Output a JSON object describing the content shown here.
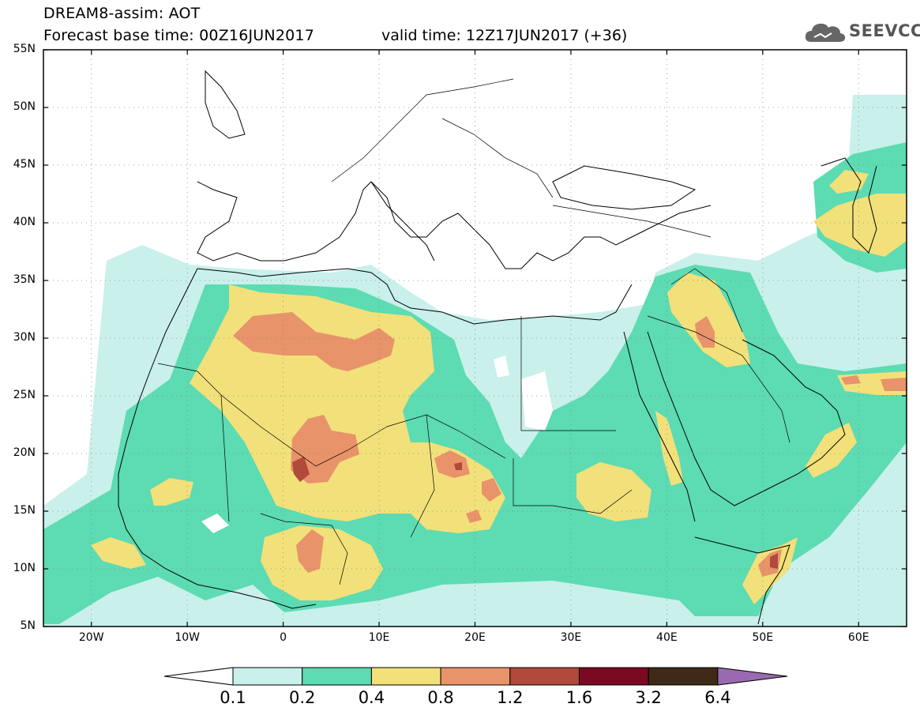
{
  "header": {
    "title_line1": "DREAM8-assim: AOT",
    "title_line2": "Forecast base time: 00Z16JUN2017",
    "valid_time": "valid time: 12Z17JUN2017 (+36)"
  },
  "logo": {
    "text": "SEEVCCC",
    "icon": "cloud-icon"
  },
  "map": {
    "projection": "lat-lon",
    "lon_range": [
      -25,
      65
    ],
    "lat_range": [
      5,
      55
    ],
    "lat_ticks": [
      "55N",
      "50N",
      "45N",
      "40N",
      "35N",
      "30N",
      "25N",
      "20N",
      "15N",
      "10N",
      "5N"
    ],
    "lon_ticks": [
      "20W",
      "10W",
      "0",
      "10E",
      "20E",
      "30E",
      "40E",
      "50E",
      "60E"
    ],
    "gridlines": "dotted"
  },
  "colorbar": {
    "labels": [
      "0.1",
      "0.2",
      "0.4",
      "0.8",
      "1.2",
      "1.6",
      "3.2",
      "6.4"
    ],
    "colors": [
      "#c9f0ea",
      "#5ddbb2",
      "#f2e07a",
      "#e8936a",
      "#b04a3a",
      "#7a0a22",
      "#3e2a16"
    ],
    "low_color": "#ffffff",
    "high_color": "#9a6ab0"
  }
}
